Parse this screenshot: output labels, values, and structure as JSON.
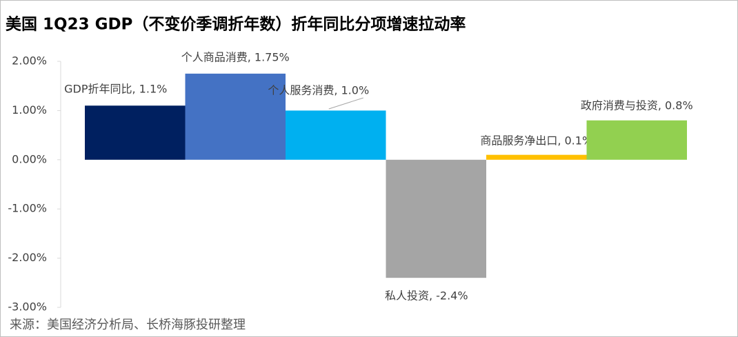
{
  "chart_data": {
    "type": "bar",
    "title": "美国 1Q23 GDP（不变价季调折年数）折年同比分项增速拉动率",
    "values": [
      1.1,
      1.75,
      1.0,
      -2.4,
      0.1,
      0.8
    ],
    "value_labels": [
      "GDP折年同比, 1.1%",
      "个人商品消费, 1.75%",
      "个人服务消费, 1.0%",
      "私人投资, -2.4%",
      "商品服务净出口, 0.1%",
      "政府消费与投资, 0.8%"
    ],
    "colors": [
      "#002060",
      "#4472c4",
      "#00b0f0",
      "#a5a5a5",
      "#ffc000",
      "#92d050"
    ],
    "ylim": [
      -3,
      2
    ],
    "yticks": [
      {
        "value": 2,
        "label": "2.00%"
      },
      {
        "value": 1,
        "label": "1.00%"
      },
      {
        "value": 0,
        "label": "0.00%"
      },
      {
        "value": -1,
        "label": "-1.00%"
      },
      {
        "value": -2,
        "label": "-2.00%"
      },
      {
        "value": -3,
        "label": "-3.00%"
      }
    ],
    "grid": false,
    "source": "来源：美国经济分析局、长桥海豚投研整理"
  }
}
